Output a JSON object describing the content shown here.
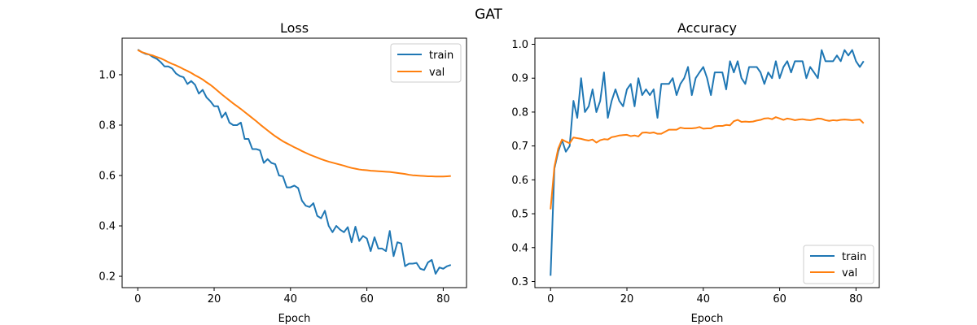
{
  "figure_title": "GAT",
  "colors": {
    "train": "#1f77b4",
    "val": "#ff7f0e"
  },
  "chart_data": [
    {
      "type": "line",
      "title": "Loss",
      "xlabel": "Epoch",
      "ylabel": "",
      "xlim": [
        -4.1,
        86.1
      ],
      "ylim": [
        0.155,
        1.145
      ],
      "xticks": [
        0,
        20,
        40,
        60,
        80
      ],
      "xtick_labels": [
        "0",
        "20",
        "40",
        "60",
        "80"
      ],
      "yticks": [
        0.2,
        0.4,
        0.6,
        0.8,
        1.0
      ],
      "ytick_labels": [
        "0.2",
        "0.4",
        "0.6",
        "0.8",
        "1.0"
      ],
      "grid": false,
      "legend": "upper right",
      "series": [
        {
          "name": "train",
          "color": "#1f77b4",
          "values": [
            1.1,
            1.09,
            1.083,
            1.08,
            1.07,
            1.063,
            1.05,
            1.033,
            1.033,
            1.025,
            1.005,
            0.995,
            0.99,
            0.963,
            0.975,
            0.96,
            0.925,
            0.94,
            0.91,
            0.895,
            0.875,
            0.875,
            0.83,
            0.85,
            0.81,
            0.8,
            0.8,
            0.81,
            0.745,
            0.745,
            0.705,
            0.705,
            0.7,
            0.65,
            0.665,
            0.65,
            0.645,
            0.6,
            0.597,
            0.553,
            0.553,
            0.56,
            0.55,
            0.5,
            0.48,
            0.475,
            0.49,
            0.44,
            0.43,
            0.46,
            0.4,
            0.375,
            0.4,
            0.385,
            0.375,
            0.395,
            0.335,
            0.397,
            0.34,
            0.36,
            0.35,
            0.3,
            0.355,
            0.31,
            0.31,
            0.3,
            0.38,
            0.28,
            0.335,
            0.33,
            0.24,
            0.25,
            0.25,
            0.253,
            0.23,
            0.225,
            0.255,
            0.265,
            0.21,
            0.235,
            0.23,
            0.24,
            0.245
          ]
        },
        {
          "name": "val",
          "color": "#ff7f0e",
          "values": [
            1.098,
            1.09,
            1.085,
            1.08,
            1.076,
            1.07,
            1.065,
            1.058,
            1.05,
            1.043,
            1.037,
            1.03,
            1.022,
            1.015,
            1.007,
            0.998,
            0.99,
            0.981,
            0.97,
            0.96,
            0.948,
            0.935,
            0.922,
            0.91,
            0.898,
            0.886,
            0.875,
            0.864,
            0.852,
            0.84,
            0.828,
            0.816,
            0.803,
            0.791,
            0.779,
            0.767,
            0.756,
            0.746,
            0.736,
            0.728,
            0.72,
            0.712,
            0.705,
            0.697,
            0.69,
            0.683,
            0.677,
            0.671,
            0.665,
            0.66,
            0.655,
            0.651,
            0.647,
            0.643,
            0.639,
            0.634,
            0.63,
            0.627,
            0.624,
            0.622,
            0.621,
            0.619,
            0.618,
            0.617,
            0.616,
            0.615,
            0.614,
            0.612,
            0.61,
            0.608,
            0.606,
            0.603,
            0.601,
            0.6,
            0.599,
            0.598,
            0.597,
            0.597,
            0.596,
            0.596,
            0.596,
            0.597,
            0.598
          ]
        }
      ]
    },
    {
      "type": "line",
      "title": "Accuracy",
      "xlabel": "Epoch",
      "ylabel": "",
      "xlim": [
        -4.1,
        86.1
      ],
      "ylim": [
        0.282,
        1.018
      ],
      "xticks": [
        0,
        20,
        40,
        60,
        80
      ],
      "xtick_labels": [
        "0",
        "20",
        "40",
        "60",
        "80"
      ],
      "yticks": [
        0.3,
        0.4,
        0.5,
        0.6,
        0.7,
        0.8,
        0.9,
        1.0
      ],
      "ytick_labels": [
        "0.3",
        "0.4",
        "0.5",
        "0.6",
        "0.7",
        "0.8",
        "0.9",
        "1.0"
      ],
      "grid": false,
      "legend": "lower right",
      "series": [
        {
          "name": "train",
          "color": "#1f77b4",
          "values": [
            0.317,
            0.633,
            0.683,
            0.717,
            0.683,
            0.7,
            0.833,
            0.783,
            0.9,
            0.8,
            0.817,
            0.867,
            0.8,
            0.833,
            0.917,
            0.783,
            0.833,
            0.867,
            0.833,
            0.817,
            0.867,
            0.883,
            0.817,
            0.9,
            0.85,
            0.867,
            0.85,
            0.867,
            0.783,
            0.883,
            0.883,
            0.883,
            0.9,
            0.85,
            0.883,
            0.9,
            0.933,
            0.85,
            0.9,
            0.917,
            0.933,
            0.9,
            0.85,
            0.917,
            0.917,
            0.917,
            0.867,
            0.95,
            0.917,
            0.95,
            0.9,
            0.883,
            0.933,
            0.933,
            0.933,
            0.917,
            0.883,
            0.917,
            0.9,
            0.95,
            0.9,
            0.933,
            0.95,
            0.917,
            0.95,
            0.95,
            0.95,
            0.9,
            0.933,
            0.917,
            0.9,
            0.983,
            0.95,
            0.95,
            0.95,
            0.967,
            0.95,
            0.983,
            0.967,
            0.983,
            0.95,
            0.933,
            0.95
          ]
        },
        {
          "name": "val",
          "color": "#ff7f0e",
          "values": [
            0.513,
            0.638,
            0.692,
            0.719,
            0.713,
            0.708,
            0.725,
            0.723,
            0.721,
            0.718,
            0.716,
            0.719,
            0.71,
            0.717,
            0.72,
            0.719,
            0.726,
            0.728,
            0.731,
            0.732,
            0.733,
            0.729,
            0.731,
            0.728,
            0.739,
            0.74,
            0.738,
            0.74,
            0.736,
            0.736,
            0.742,
            0.748,
            0.748,
            0.748,
            0.754,
            0.752,
            0.752,
            0.752,
            0.753,
            0.756,
            0.751,
            0.752,
            0.752,
            0.758,
            0.759,
            0.759,
            0.762,
            0.761,
            0.773,
            0.777,
            0.771,
            0.772,
            0.771,
            0.772,
            0.775,
            0.777,
            0.781,
            0.782,
            0.779,
            0.785,
            0.781,
            0.777,
            0.781,
            0.779,
            0.776,
            0.778,
            0.779,
            0.777,
            0.776,
            0.778,
            0.781,
            0.78,
            0.776,
            0.774,
            0.776,
            0.775,
            0.777,
            0.778,
            0.777,
            0.776,
            0.777,
            0.778,
            0.767
          ]
        }
      ]
    }
  ]
}
